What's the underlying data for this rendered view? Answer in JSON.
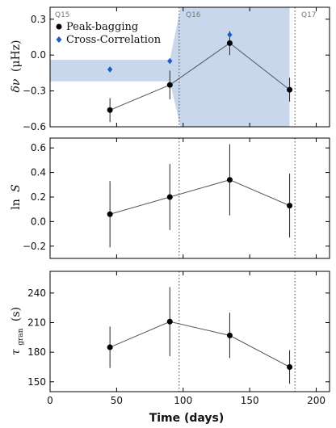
{
  "chart_data": [
    {
      "type": "line",
      "panel": "top",
      "ylabel": "δν (μHz)",
      "ylim": [
        -0.6,
        0.4
      ],
      "yticks": [
        -0.6,
        -0.3,
        0.0,
        0.3
      ],
      "ytick_labels": [
        "−0.6",
        "−0.3",
        "0.0",
        "0.3"
      ],
      "quarter_labels": [
        "Q15",
        "Q16",
        "Q17"
      ],
      "legend": {
        "placement": "top-left",
        "entries": [
          "Peak-bagging",
          "Cross-Correlation"
        ]
      },
      "series": [
        {
          "name": "Peak-bagging",
          "color": "#000000",
          "x": [
            45,
            90,
            135,
            180
          ],
          "y": [
            -0.46,
            -0.25,
            0.1,
            -0.29
          ],
          "yerr": [
            0.1,
            0.12,
            0.1,
            0.1
          ]
        },
        {
          "name": "Cross-Correlation",
          "color": "#1f5fbf",
          "marker": "diamond",
          "x": [
            45,
            90,
            135
          ],
          "y": [
            -0.12,
            -0.05,
            0.17
          ]
        }
      ],
      "band": {
        "color": "#c9d7ec",
        "x": [
          0,
          90,
          98,
          180
        ],
        "lower": [
          -0.22,
          -0.22,
          -0.6,
          -0.6
        ],
        "upper": [
          -0.04,
          -0.04,
          0.4,
          0.4
        ]
      }
    },
    {
      "type": "line",
      "panel": "middle",
      "ylabel": "ln S",
      "ylim": [
        -0.3,
        0.68
      ],
      "yticks": [
        -0.2,
        0.0,
        0.2,
        0.4,
        0.6
      ],
      "ytick_labels": [
        "−0.2",
        "0.0",
        "0.2",
        "0.4",
        "0.6"
      ],
      "series": [
        {
          "name": "Peak-bagging",
          "color": "#000000",
          "x": [
            45,
            90,
            135,
            180
          ],
          "y": [
            0.06,
            0.2,
            0.34,
            0.13
          ],
          "yerr": [
            0.27,
            0.27,
            0.29,
            0.26
          ]
        }
      ]
    },
    {
      "type": "line",
      "panel": "bottom",
      "ylabel": "τgran (s)",
      "ylim": [
        140,
        262
      ],
      "yticks": [
        150,
        180,
        210,
        240
      ],
      "ytick_labels": [
        "150",
        "180",
        "210",
        "240"
      ],
      "xlabel": "Time (days)",
      "xlim": [
        0,
        210
      ],
      "xticks": [
        0,
        50,
        100,
        150,
        200
      ],
      "xtick_labels": [
        "0",
        "50",
        "100",
        "150",
        "200"
      ],
      "series": [
        {
          "name": "Peak-bagging",
          "color": "#000000",
          "x": [
            45,
            90,
            135,
            180
          ],
          "y": [
            185,
            211,
            197,
            165
          ],
          "yerr": [
            21,
            35,
            23,
            17
          ]
        }
      ]
    }
  ],
  "quarter_boundaries": [
    97,
    184
  ],
  "labels": {
    "top_ylabel_greek": "δν",
    "top_ylabel_unit": "(μHz)",
    "mid_ylabel_ln": "ln",
    "mid_ylabel_var": "S",
    "bot_ylabel_tau": "τ",
    "bot_ylabel_sub": "gran",
    "bot_ylabel_unit": "(s)",
    "xlabel": "Time (days)",
    "q15": "Q15",
    "q16": "Q16",
    "q17": "Q17",
    "legend_pb": "Peak-bagging",
    "legend_cc": "Cross-Correlation"
  }
}
